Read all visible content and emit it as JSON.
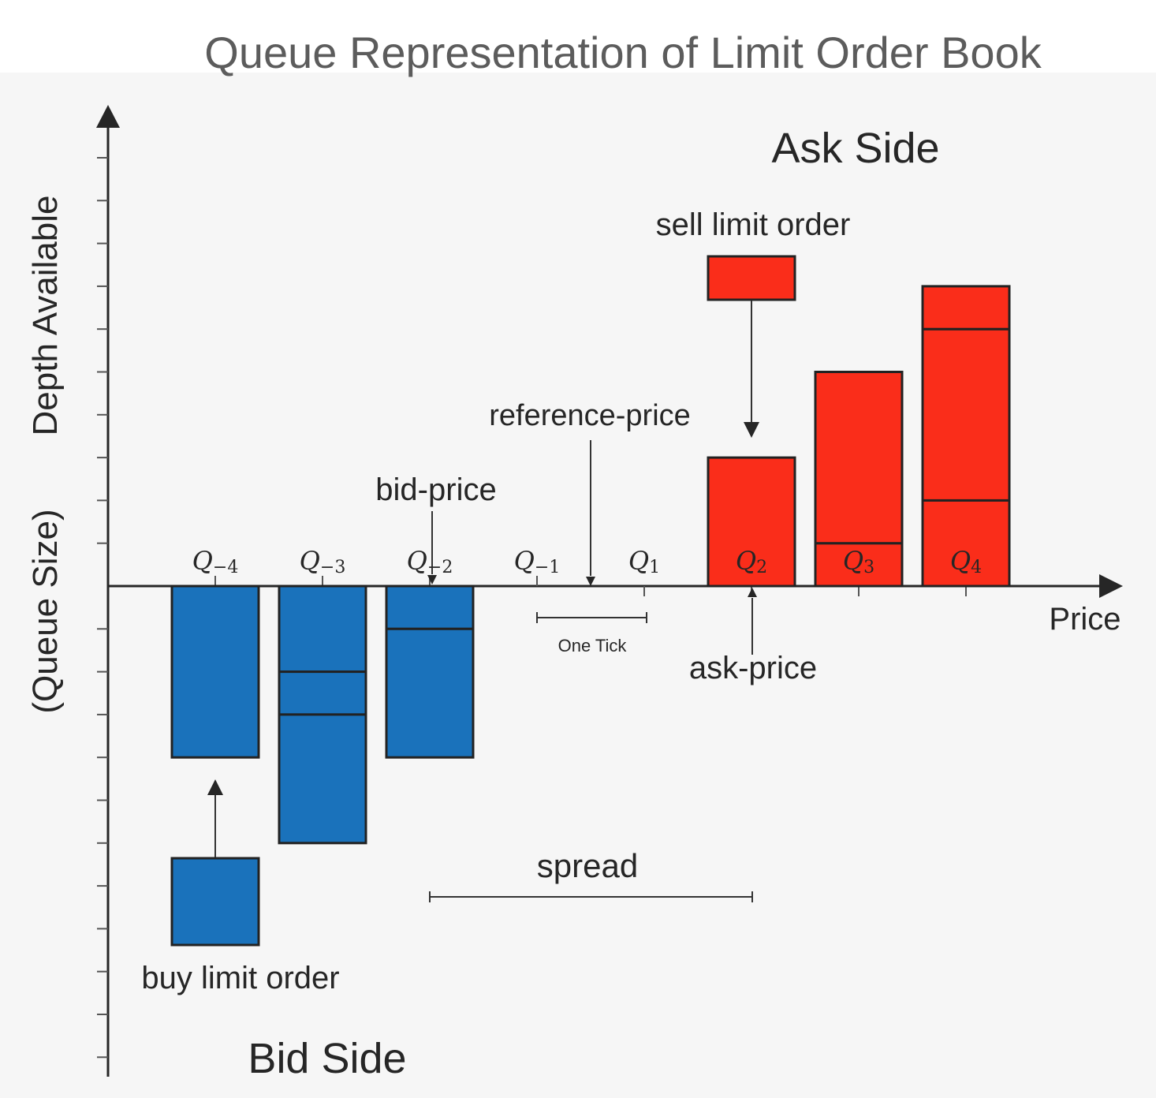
{
  "title": "Queue Representation of Limit Order Book",
  "y_axis_label": {
    "line1": "Depth Available",
    "line2": "(Queue Size)"
  },
  "x_axis_label": "Price",
  "ask_side_label": "Ask Side",
  "bid_side_label": "Bid Side",
  "annotations": {
    "sell_limit_order": "sell limit order",
    "buy_limit_order": "buy limit order",
    "reference_price": "reference-price",
    "bid_price": "bid-price",
    "ask_price": "ask-price",
    "spread": "spread",
    "one_tick": "One Tick"
  },
  "queues": [
    {
      "base": "Q",
      "sub": "−4"
    },
    {
      "base": "Q",
      "sub": "−3"
    },
    {
      "base": "Q",
      "sub": "−2"
    },
    {
      "base": "Q",
      "sub": "−1"
    },
    {
      "base": "Q",
      "sub": "1"
    },
    {
      "base": "Q",
      "sub": "2"
    },
    {
      "base": "Q",
      "sub": "3"
    },
    {
      "base": "Q",
      "sub": "4"
    }
  ],
  "depths": {
    "bid": [
      {
        "queue": "Q−4",
        "orders": [
          4
        ]
      },
      {
        "queue": "Q−3",
        "orders": [
          2,
          1,
          3
        ]
      },
      {
        "queue": "Q−2",
        "orders": [
          1,
          3
        ]
      },
      {
        "queue": "Q−1",
        "orders": []
      }
    ],
    "ask": [
      {
        "queue": "Q1",
        "orders": []
      },
      {
        "queue": "Q2",
        "orders": [
          3
        ]
      },
      {
        "queue": "Q3",
        "orders": [
          1,
          4
        ]
      },
      {
        "queue": "Q4",
        "orders": [
          2,
          4,
          1
        ]
      }
    ],
    "incoming_sell": 1,
    "incoming_buy": 2
  },
  "colors": {
    "bid": "#1a72bb",
    "ask": "#fa2d1a",
    "outline": "#222222",
    "text": "#262626",
    "title": "#5c5c5c"
  }
}
